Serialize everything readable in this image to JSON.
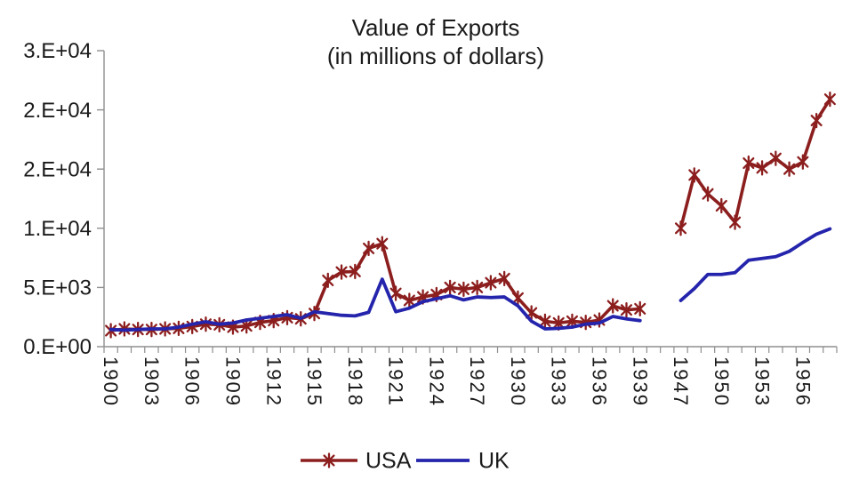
{
  "title": {
    "line1": "Value of Exports",
    "line2": "(in millions of dollars)"
  },
  "legend": {
    "position": "bottom-center",
    "items": [
      {
        "label": "USA",
        "color": "#8C1E1E",
        "marker": "star6-icon"
      },
      {
        "label": "UK",
        "color": "#2424AC",
        "marker": "line-icon"
      }
    ]
  },
  "chart_data": {
    "type": "line",
    "title": "Value of Exports (in millions of dollars)",
    "grid": false,
    "legend_position": "bottom",
    "axis_color": "#8f8f8f",
    "text_color": "#1a1a1a",
    "x_label_interval": 3,
    "x_label_rotation_deg": 90,
    "categories": [
      "1900",
      "1901",
      "1902",
      "1903",
      "1904",
      "1905",
      "1906",
      "1907",
      "1908",
      "1909",
      "1910",
      "1911",
      "1912",
      "1913",
      "1914",
      "1915",
      "1916",
      "1917",
      "1918",
      "1919",
      "1920",
      "1921",
      "1922",
      "1923",
      "1924",
      "1925",
      "1926",
      "1927",
      "1928",
      "1929",
      "1930",
      "1931",
      "1932",
      "1933",
      "1934",
      "1935",
      "1936",
      "1937",
      "1938",
      "1939",
      "",
      "",
      "1947",
      "1948",
      "1949",
      "1950",
      "1951",
      "1952",
      "1953",
      "1954",
      "1955",
      "1956",
      "1957",
      "1958"
    ],
    "visible_x_tick_labels": [
      "1900",
      "1903",
      "1906",
      "1909",
      "1912",
      "1915",
      "1918",
      "1921",
      "1924",
      "1927",
      "1930",
      "1933",
      "1936",
      "1939",
      "1947",
      "1950",
      "1953",
      "1956"
    ],
    "y_axis": {
      "min": 0,
      "max": 25000,
      "tick_interval": 5000,
      "tick_labels": [
        "0.E+00",
        "5.E+03",
        "1.E+04",
        "2.E+04",
        "2.E+04",
        "3.E+04"
      ]
    },
    "series": [
      {
        "name": "USA",
        "color": "#8C1E1E",
        "marker": "star6",
        "line_width": 3.6,
        "values": [
          1350,
          1500,
          1450,
          1450,
          1500,
          1550,
          1700,
          1900,
          1850,
          1650,
          1750,
          2050,
          2200,
          2450,
          2350,
          2800,
          5600,
          6300,
          6350,
          8300,
          8700,
          4500,
          3900,
          4200,
          4400,
          5000,
          4850,
          5000,
          5400,
          5750,
          4100,
          2850,
          2150,
          2000,
          2150,
          2050,
          2250,
          3450,
          3100,
          3200,
          null,
          null,
          10000,
          14500,
          12900,
          11900,
          10500,
          15500,
          15100,
          15900,
          15000,
          15600,
          19100,
          20900
        ]
      },
      {
        "name": "UK",
        "color": "#2424AC",
        "marker": "none",
        "line_width": 3.8,
        "values": [
          1450,
          1400,
          1450,
          1500,
          1500,
          1650,
          1900,
          2100,
          1900,
          2000,
          2250,
          2400,
          2550,
          2700,
          2400,
          2950,
          2800,
          2650,
          2600,
          2900,
          5700,
          2950,
          3250,
          3800,
          4050,
          4300,
          3950,
          4200,
          4150,
          4200,
          3450,
          2150,
          1500,
          1550,
          1650,
          1900,
          2000,
          2550,
          2350,
          2200,
          null,
          null,
          3900,
          4900,
          6100,
          6100,
          6250,
          7300,
          7450,
          7600,
          8050,
          8800,
          9500,
          9950
        ]
      }
    ]
  }
}
